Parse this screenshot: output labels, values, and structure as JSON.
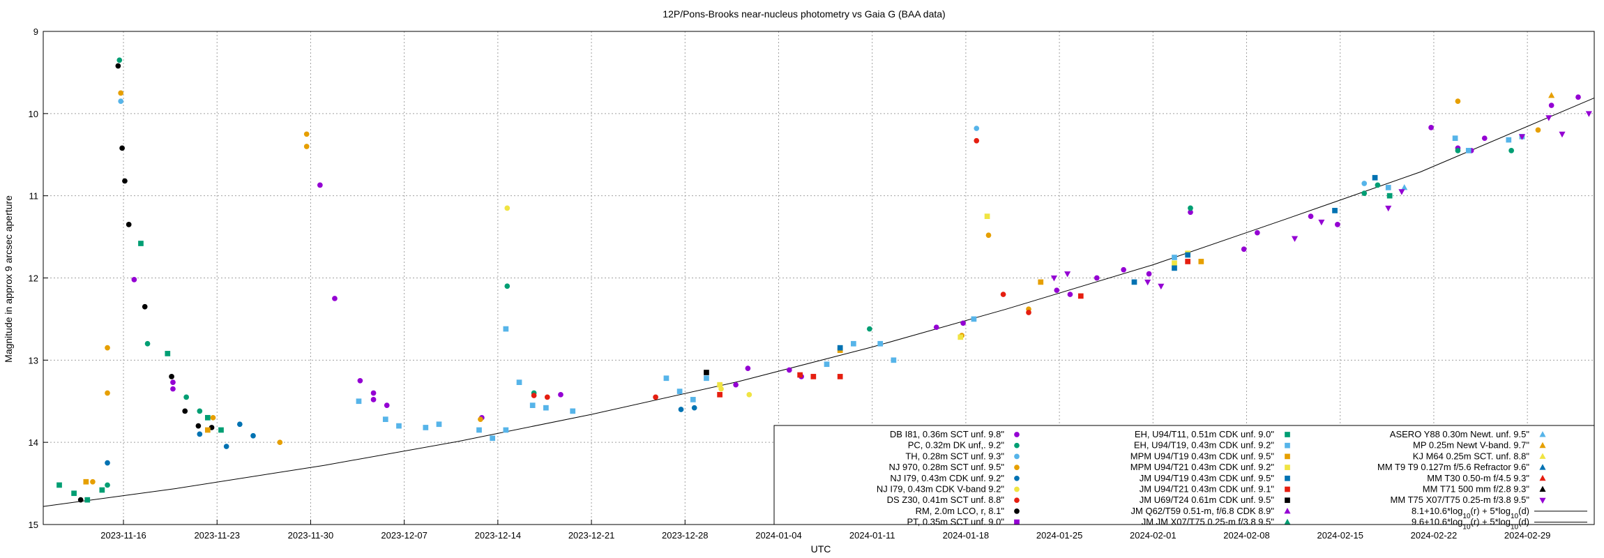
{
  "chart_data": {
    "type": "scatter",
    "title": "12P/Pons-Brooks near-nucleus photometry vs Gaia G (BAA data)",
    "xlabel": "UTC",
    "ylabel": "Magnitude in approx 9 arcsec aperture",
    "xlim": [
      "2023-11-10",
      "2024-03-05"
    ],
    "ylim": [
      15,
      9
    ],
    "y_inverted": true,
    "grid": true,
    "legend_position": "bottom-right",
    "x_ticks": [
      "2023-11-16",
      "2023-11-23",
      "2023-11-30",
      "2023-12-07",
      "2023-12-14",
      "2023-12-21",
      "2023-12-28",
      "2024-01-04",
      "2024-01-11",
      "2024-01-18",
      "2024-01-25",
      "2024-02-01",
      "2024-02-08",
      "2024-02-15",
      "2024-02-22",
      "2024-02-29"
    ],
    "y_ticks": [
      9,
      10,
      11,
      12,
      13,
      14,
      15
    ],
    "legend_labels": [
      "DB I81, 0.36m SCT unf. 9.8\"",
      "PC, 0.32m DK unf,. 9.2\"",
      "TH, 0.28m SCT unf. 9.3\"",
      "NJ 970, 0.28m SCT unf. 9.5\"",
      "NJ I79, 0.43m CDK unf. 9.2\"",
      "NJ I79, 0.43m CDK V-band 9.2\"",
      "DS Z30, 0.41m SCT unf. 8.8\"",
      "RM, 2.0m LCO, r, 8.1\"",
      "PT, 0.35m SCT unf. 9.0\"",
      "EH, U94/T11, 0.51m CDK unf. 9.0\"",
      "EH, U94/T19, 0.43m CDK unf. 9.2\"",
      "MPM U94/T19 0.43m CDK unf. 9.5\"",
      "MPM U94/T21 0.43m CDK unf. 9.2\"",
      "JM U94/T19 0.43m CDK unf. 9.5\"",
      "JM U94/T21 0.43m CDK unf. 9.1\"",
      "JM U69/T24 0.61m CDK unf. 9.5\"",
      "JM Q62/T59 0.51-m, f/6.8 CDK 8.9\"",
      "JM JM X07/T75 0.25-m f/3.8 9.5\"",
      "ASERO Y88 0.30m Newt. unf. 9.5\"",
      "MP 0.25m Newt V-band. 9.7\"",
      "KJ M64 0.25m SCT. unf. 8.8\"",
      "MM T9 T9 0.127m f/5.6 Refractor 9.6\"",
      "MM T30 0.50-m f/4.5 9.3\"",
      "MM T71 500 mm f/2.8 9.3\"",
      "MM T75 X07/T75 0.25-m f/3.8 9.5\""
    ],
    "legend_formulas": [
      {
        "base": "8.1+10.6*log",
        "sub1": "10",
        "mid": "(r) + 5*log",
        "sub2": "10",
        "end": "(d)"
      },
      {
        "base": "9.6+10.6*log",
        "sub1": "10",
        "mid": "(r) + 5*log",
        "sub2": "10",
        "end": "(d)"
      }
    ],
    "series_colors": [
      "#9400d3",
      "#009e73",
      "#56b4e9",
      "#e69f00",
      "#0072b2",
      "#f0e442",
      "#e51e10",
      "#000000",
      "#9400d3",
      "#009e73",
      "#56b4e9",
      "#e69f00",
      "#f0e442",
      "#0072b2",
      "#e51e10",
      "#000000",
      "#9400d3",
      "#009e73",
      "#56b4e9",
      "#e69f00",
      "#f0e442",
      "#0072b2",
      "#e51e10",
      "#000000",
      "#9400d3"
    ],
    "series_markers": [
      "circle",
      "circle",
      "circle",
      "circle",
      "circle",
      "circle",
      "circle",
      "circle",
      "square",
      "square",
      "square",
      "square",
      "square",
      "square",
      "square",
      "square",
      "triangle",
      "triangle",
      "triangle",
      "triangle",
      "triangle",
      "triangle",
      "triangle",
      "triangle",
      "triangle-down"
    ],
    "model_curve": {
      "label": "9.6+10.6*log10(r) + 5*log10(d)",
      "x": [
        "2023-11-10",
        "2023-11-20",
        "2023-12-01",
        "2023-12-11",
        "2023-12-21",
        "2024-01-01",
        "2024-01-11",
        "2024-01-21",
        "2024-02-01",
        "2024-02-11",
        "2024-02-21",
        "2024-03-05"
      ],
      "y": [
        14.78,
        14.56,
        14.28,
        13.99,
        13.66,
        13.26,
        12.84,
        12.38,
        11.84,
        11.28,
        10.71,
        9.81
      ]
    },
    "series": [
      {
        "name": "DB I81, 0.36m SCT unf. 9.8\"",
        "points": [
          [
            "2023-11-16.8",
            12.02
          ],
          [
            "2023-11-19.7",
            13.27
          ],
          [
            "2023-11-19.7",
            13.35
          ],
          [
            "2023-11-30.7",
            10.87
          ],
          [
            "2023-12-01.8",
            12.25
          ],
          [
            "2023-12-03.7",
            13.25
          ],
          [
            "2023-12-04.7",
            13.4
          ],
          [
            "2023-12-04.7",
            13.48
          ],
          [
            "2023-12-05.7",
            13.55
          ],
          [
            "2023-12-12.8",
            13.7
          ],
          [
            "2023-12-18.7",
            13.42
          ],
          [
            "2023-12-31.8",
            13.3
          ],
          [
            "2024-01-01.7",
            13.1
          ],
          [
            "2024-01-04.8",
            13.12
          ],
          [
            "2024-01-05.7",
            13.2
          ],
          [
            "2024-01-15.8",
            12.6
          ],
          [
            "2024-01-17.8",
            12.55
          ],
          [
            "2024-01-24.8",
            12.15
          ],
          [
            "2024-01-25.8",
            12.2
          ],
          [
            "2024-01-27.8",
            12.0
          ],
          [
            "2024-01-29.8",
            11.9
          ],
          [
            "2024-01-31.7",
            11.95
          ],
          [
            "2024-02-03.8",
            11.2
          ],
          [
            "2024-02-07.8",
            11.65
          ],
          [
            "2024-02-08.8",
            11.45
          ],
          [
            "2024-02-12.8",
            11.25
          ],
          [
            "2024-02-14.8",
            11.35
          ],
          [
            "2024-02-21.8",
            10.17
          ],
          [
            "2024-02-23.8",
            10.42
          ],
          [
            "2024-02-24.8",
            10.45
          ],
          [
            "2024-02-25.8",
            10.3
          ],
          [
            "2024-03-01.8",
            9.9
          ],
          [
            "2024-03-03.8",
            9.8
          ]
        ]
      },
      {
        "name": "PC, 0.32m DK unf,. 9.2\"",
        "points": [
          [
            "2023-11-14.8",
            14.52
          ],
          [
            "2023-11-15.7",
            9.35
          ],
          [
            "2023-11-17.8",
            12.8
          ],
          [
            "2023-11-20.7",
            13.45
          ],
          [
            "2023-11-21.7",
            13.62
          ],
          [
            "2023-12-14.7",
            12.1
          ],
          [
            "2023-12-16.7",
            13.4
          ],
          [
            "2024-01-10.8",
            12.62
          ],
          [
            "2024-02-03.8",
            11.15
          ],
          [
            "2024-02-16.8",
            10.97
          ],
          [
            "2024-02-17.8",
            10.87
          ],
          [
            "2024-02-23.8",
            10.45
          ],
          [
            "2024-02-27.8",
            10.45
          ]
        ]
      },
      {
        "name": "TH, 0.28m SCT unf. 9.3\"",
        "points": [
          [
            "2023-11-15.8",
            9.85
          ],
          [
            "2024-01-18.8",
            10.18
          ],
          [
            "2024-02-16.8",
            10.85
          ]
        ]
      },
      {
        "name": "NJ 970, 0.28m SCT unf. 9.5\"",
        "points": [
          [
            "2023-11-13.7",
            14.48
          ],
          [
            "2023-11-14.8",
            13.4
          ],
          [
            "2023-11-14.8",
            12.85
          ],
          [
            "2023-11-15.8",
            9.75
          ],
          [
            "2023-11-22.7",
            13.7
          ],
          [
            "2023-11-27.7",
            14.0
          ],
          [
            "2023-11-29.7",
            10.4
          ],
          [
            "2023-11-29.7",
            10.25
          ],
          [
            "2023-12-12.7",
            13.72
          ],
          [
            "2024-01-17.7",
            12.7
          ],
          [
            "2024-01-19.7",
            11.48
          ],
          [
            "2024-01-22.7",
            12.38
          ],
          [
            "2024-02-23.8",
            9.85
          ],
          [
            "2024-02-29.8",
            10.2
          ]
        ]
      },
      {
        "name": "NJ I79, 0.43m CDK unf. 9.2\"",
        "points": [
          [
            "2023-11-14.8",
            14.25
          ],
          [
            "2023-11-21.7",
            13.9
          ],
          [
            "2023-11-23.7",
            14.05
          ],
          [
            "2023-11-24.7",
            13.78
          ],
          [
            "2023-11-25.7",
            13.92
          ],
          [
            "2023-12-27.7",
            13.6
          ],
          [
            "2023-12-28.7",
            13.58
          ]
        ]
      },
      {
        "name": "NJ I79, 0.43m CDK V-band 9.2\"",
        "points": [
          [
            "2023-12-14.7",
            11.15
          ],
          [
            "2023-12-30.7",
            13.35
          ],
          [
            "2024-01-01.8",
            13.42
          ]
        ]
      },
      {
        "name": "DS Z30, 0.41m SCT unf. 8.8\"",
        "points": [
          [
            "2023-12-16.7",
            13.43
          ],
          [
            "2023-12-17.7",
            13.45
          ],
          [
            "2023-12-25.8",
            13.45
          ],
          [
            "2024-01-18.8",
            10.33
          ],
          [
            "2024-01-20.8",
            12.2
          ],
          [
            "2024-01-22.7",
            12.42
          ]
        ]
      },
      {
        "name": "RM, 2.0m LCO, r, 8.1\"",
        "points": [
          [
            "2023-11-12.8",
            14.7
          ],
          [
            "2023-11-15.6",
            9.42
          ],
          [
            "2023-11-15.9",
            10.42
          ],
          [
            "2023-11-16.1",
            10.82
          ],
          [
            "2023-11-16.4",
            11.35
          ],
          [
            "2023-11-17.6",
            12.35
          ],
          [
            "2023-11-19.6",
            13.2
          ],
          [
            "2023-11-20.6",
            13.62
          ],
          [
            "2023-11-21.6",
            13.8
          ],
          [
            "2023-11-22.6",
            13.82
          ]
        ]
      },
      {
        "name": "PT, 0.35m SCT unf. 9.0\"",
        "points": []
      },
      {
        "name": "EH, U94/T11, 0.51m CDK unf. 9.0\"",
        "points": [
          [
            "2023-11-11.2",
            14.52
          ],
          [
            "2023-11-12.3",
            14.62
          ],
          [
            "2023-11-13.3",
            14.7
          ],
          [
            "2023-11-14.4",
            14.58
          ],
          [
            "2023-11-17.3",
            11.58
          ],
          [
            "2023-11-19.3",
            12.92
          ],
          [
            "2023-11-22.3",
            13.7
          ],
          [
            "2023-11-23.3",
            13.85
          ],
          [
            "2024-02-18.7",
            11.0
          ]
        ]
      },
      {
        "name": "EH, U94/T19, 0.43m CDK unf. 9.2\"",
        "points": [
          [
            "2023-12-03.6",
            13.5
          ],
          [
            "2023-12-05.6",
            13.72
          ],
          [
            "2023-12-06.6",
            13.8
          ],
          [
            "2023-12-08.6",
            13.82
          ],
          [
            "2023-12-09.6",
            13.78
          ],
          [
            "2023-12-12.6",
            13.85
          ],
          [
            "2023-12-13.6",
            13.95
          ],
          [
            "2023-12-14.6",
            13.85
          ],
          [
            "2023-12-14.6",
            12.62
          ],
          [
            "2023-12-15.6",
            13.27
          ],
          [
            "2023-12-16.6",
            13.55
          ],
          [
            "2023-12-17.6",
            13.58
          ],
          [
            "2023-12-19.6",
            13.62
          ],
          [
            "2023-12-26.6",
            13.22
          ],
          [
            "2023-12-27.6",
            13.38
          ],
          [
            "2023-12-28.6",
            13.48
          ],
          [
            "2023-12-29.6",
            13.22
          ],
          [
            "2024-01-07.6",
            13.05
          ],
          [
            "2024-01-09.6",
            12.8
          ],
          [
            "2024-01-11.6",
            12.8
          ],
          [
            "2024-01-12.6",
            13.0
          ],
          [
            "2024-01-18.6",
            12.5
          ],
          [
            "2024-02-02.6",
            11.75
          ],
          [
            "2024-02-18.6",
            10.9
          ],
          [
            "2024-02-23.6",
            10.3
          ],
          [
            "2024-02-24.6",
            10.45
          ],
          [
            "2024-02-27.6",
            10.32
          ],
          [
            "2024-02-28.6",
            10.28
          ]
        ]
      },
      {
        "name": "MPM U94/T19 0.43m CDK unf. 9.5\"",
        "points": [
          [
            "2023-11-13.2",
            14.48
          ],
          [
            "2023-11-22.3",
            13.85
          ],
          [
            "2024-01-08.6",
            12.88
          ],
          [
            "2024-01-23.6",
            12.05
          ],
          [
            "2024-02-04.6",
            11.8
          ]
        ]
      },
      {
        "name": "MPM U94/T21 0.43m CDK unf. 9.2\"",
        "points": [
          [
            "2023-12-30.6",
            13.3
          ],
          [
            "2024-01-17.6",
            12.72
          ],
          [
            "2024-01-19.6",
            11.25
          ],
          [
            "2024-02-02.6",
            11.82
          ],
          [
            "2024-02-03.6",
            11.7
          ]
        ]
      },
      {
        "name": "JM U94/T19 0.43m CDK unf. 9.5\"",
        "points": [
          [
            "2024-01-08.6",
            12.85
          ],
          [
            "2024-01-30.6",
            12.05
          ],
          [
            "2024-02-02.6",
            11.88
          ],
          [
            "2024-02-03.6",
            11.72
          ],
          [
            "2024-02-14.6",
            11.18
          ],
          [
            "2024-02-17.6",
            10.78
          ]
        ]
      },
      {
        "name": "JM U94/T21 0.43m CDK unf. 9.1\"",
        "points": [
          [
            "2023-12-30.6",
            13.42
          ],
          [
            "2024-01-05.6",
            13.18
          ],
          [
            "2024-01-06.6",
            13.2
          ],
          [
            "2024-01-08.6",
            13.2
          ],
          [
            "2024-01-26.6",
            12.22
          ],
          [
            "2024-02-03.6",
            11.8
          ]
        ]
      },
      {
        "name": "JM U69/T24 0.61m CDK unf. 9.5\"",
        "points": [
          [
            "2023-12-29.6",
            13.15
          ]
        ]
      },
      {
        "name": "JM Q62/T59 0.51-m, f/6.8 CDK 8.9\"",
        "points": []
      },
      {
        "name": "JM JM X07/T75 0.25-m f/3.8 9.5\"",
        "points": []
      },
      {
        "name": "ASERO Y88 0.30m Newt. unf. 9.5\"",
        "points": [
          [
            "2024-02-19.8",
            10.9
          ]
        ]
      },
      {
        "name": "MP 0.25m Newt V-band. 9.7\"",
        "points": [
          [
            "2024-03-01.8",
            9.78
          ]
        ]
      },
      {
        "name": "KJ M64 0.25m SCT. unf. 8.8\"",
        "points": []
      },
      {
        "name": "MM T9 T9 0.127m f/5.6 Refractor 9.6\"",
        "points": []
      },
      {
        "name": "MM T30 0.50-m f/4.5 9.3\"",
        "points": []
      },
      {
        "name": "MM T71 500 mm f/2.8 9.3\"",
        "points": []
      },
      {
        "name": "MM T75 X07/T75 0.25-m f/3.8 9.5\"",
        "points": [
          [
            "2024-01-24.6",
            12.0
          ],
          [
            "2024-01-25.6",
            11.95
          ],
          [
            "2024-01-31.6",
            12.05
          ],
          [
            "2024-02-01.6",
            12.1
          ],
          [
            "2024-02-11.6",
            11.52
          ],
          [
            "2024-02-13.6",
            11.32
          ],
          [
            "2024-02-18.6",
            11.15
          ],
          [
            "2024-02-19.6",
            10.95
          ],
          [
            "2024-02-28.6",
            10.28
          ],
          [
            "2024-03-01.6",
            10.05
          ],
          [
            "2024-03-02.6",
            10.25
          ],
          [
            "2024-03-04.6",
            10.0
          ]
        ]
      }
    ]
  }
}
